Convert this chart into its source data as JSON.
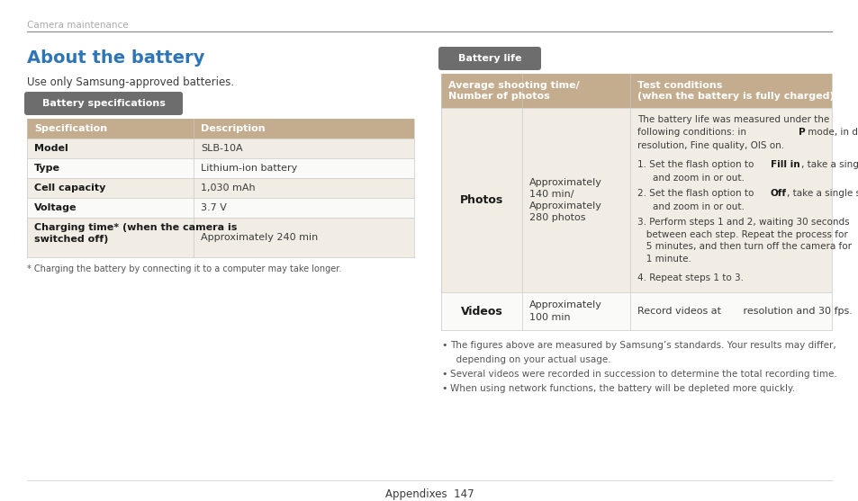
{
  "bg_color": "#ffffff",
  "header_text": "Camera maintenance",
  "header_color": "#aaaaaa",
  "title_text": "About the battery",
  "title_color": "#2e75b6",
  "subtitle_text": "Use only Samsung-approved batteries.",
  "section1_badge": "Battery specifications",
  "badge_bg": "#6d6d6d",
  "badge_text_color": "#ffffff",
  "spec_header_bg": "#c4ad8e",
  "spec_row_bg1": "#f2ede4",
  "spec_row_bg2": "#fafaf8",
  "spec_col1_header": "Specification",
  "spec_col2_header": "Description",
  "spec_rows": [
    [
      "Model",
      "SLB-10A",
      false
    ],
    [
      "Type",
      "Lithium-ion battery",
      false
    ],
    [
      "Cell capacity",
      "1,030 mAh",
      false
    ],
    [
      "Voltage",
      "3.7 V",
      false
    ],
    [
      "Charging time* (when the camera is\nswitched off)",
      "Approximately 240 min",
      true
    ]
  ],
  "spec_note": "* Charging the battery by connecting it to a computer may take longer.",
  "section2_badge": "Battery life",
  "battery_header_col1": "Average shooting time/\nNumber of photos",
  "battery_header_col2": "Test conditions\n(when the battery is fully charged)",
  "battery_row1_label": "Photos",
  "battery_row1_time": "Approximately\n140 min/\nApproximately\n280 photos",
  "battery_row2_label": "Videos",
  "battery_row2_time": "Approximately\n100 min",
  "battery_row2_cond": "Record videos at       resolution and 30 fps.",
  "battery_notes": [
    "The figures above are measured by Samsung’s standards. Your results may differ,",
    "  depending on your actual usage.",
    "Several videos were recorded in succession to determine the total recording time.",
    "When using network functions, the battery will be depleted more quickly."
  ],
  "footer_text": "Appendixes  147",
  "line_color": "#c8c8c8",
  "text_color": "#3c3c3c",
  "bold_color": "#1a1a1a",
  "note_color": "#555555"
}
